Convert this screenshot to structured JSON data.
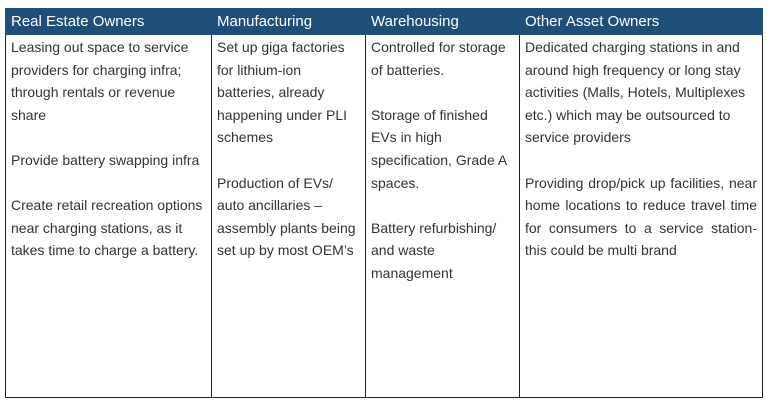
{
  "table": {
    "header": [
      "Real Estate Owners",
      "Manufacturing",
      "Warehousing",
      "Other Asset Owners"
    ],
    "cells": [
      [
        "Leasing out space to service providers for charging infra; through rentals or revenue share",
        "Provide battery swapping infra",
        "Create retail recreation options near charging stations, as it takes time to charge a battery."
      ],
      [
        "Set up giga factories for lithium-ion batteries, already happening under PLI schemes",
        "Production of EVs/ auto ancillaries – assembly plants being set up by most OEM’s"
      ],
      [
        "Controlled for storage of batteries.",
        "Storage of finished EVs in high specification, Grade A spaces.",
        "Battery refurbishing/ and waste management"
      ],
      [
        "Dedicated charging stations in and around high frequency or long stay activities (Malls, Hotels, Multiplexes etc.) which may be outsourced to service providers",
        "Providing drop/pick up facilities, near home locations to reduce travel time for consumers to a service station- this could be multi brand"
      ]
    ]
  }
}
